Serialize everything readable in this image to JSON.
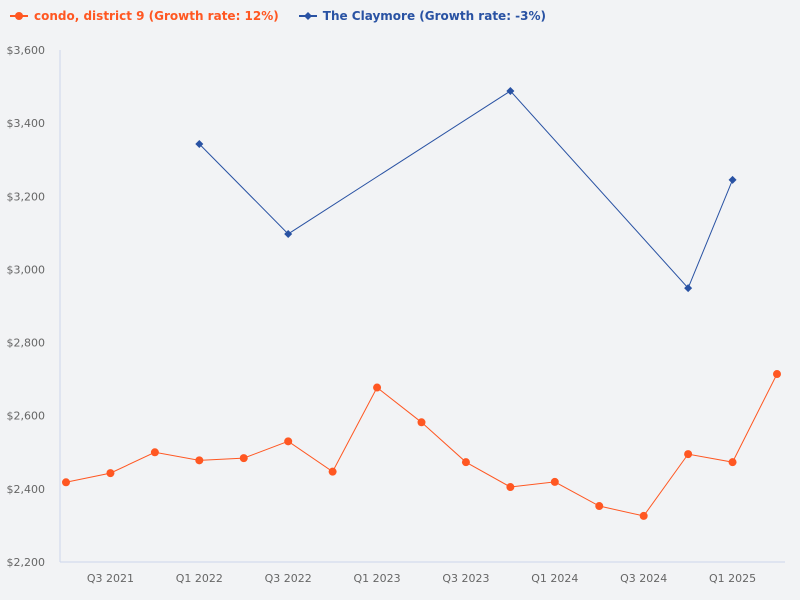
{
  "chart_data": {
    "type": "line",
    "title": "",
    "xlabel": "",
    "ylabel": "",
    "ylim": [
      2200,
      3600
    ],
    "yticks": [
      2200,
      2400,
      2600,
      2800,
      3000,
      3200,
      3400,
      3600
    ],
    "ytick_labels": [
      "$2,200",
      "$2,400",
      "$2,600",
      "$2,800",
      "$3,000",
      "$3,200",
      "$3,400",
      "$3,600"
    ],
    "categories": [
      "Q2 2021",
      "Q3 2021",
      "Q4 2021",
      "Q1 2022",
      "Q2 2022",
      "Q3 2022",
      "Q4 2022",
      "Q1 2023",
      "Q2 2023",
      "Q3 2023",
      "Q4 2023",
      "Q1 2024",
      "Q2 2024",
      "Q3 2024",
      "Q4 2024",
      "Q1 2025",
      "Q2 2025"
    ],
    "xtick_labels": [
      "Q3 2021",
      "Q1 2022",
      "Q3 2022",
      "Q1 2023",
      "Q3 2023",
      "Q1 2024",
      "Q3 2024",
      "Q1 2025"
    ],
    "grid": false,
    "legend_position": "top-left",
    "series": [
      {
        "name": "condo, district 9 (Growth rate: 12%)",
        "color": "#ff5722",
        "marker": "circle",
        "values": [
          2418,
          2443,
          2500,
          2478,
          2484,
          2530,
          2447,
          2677,
          2582,
          2473,
          2405,
          2419,
          2353,
          2326,
          2495,
          2473,
          2714
        ]
      },
      {
        "name": "The Claymore (Growth rate: -3%)",
        "color": "#2952a3",
        "marker": "diamond",
        "values": [
          null,
          null,
          null,
          3343,
          null,
          3097,
          null,
          null,
          null,
          null,
          3488,
          null,
          null,
          null,
          2949,
          3245,
          null
        ]
      }
    ]
  }
}
